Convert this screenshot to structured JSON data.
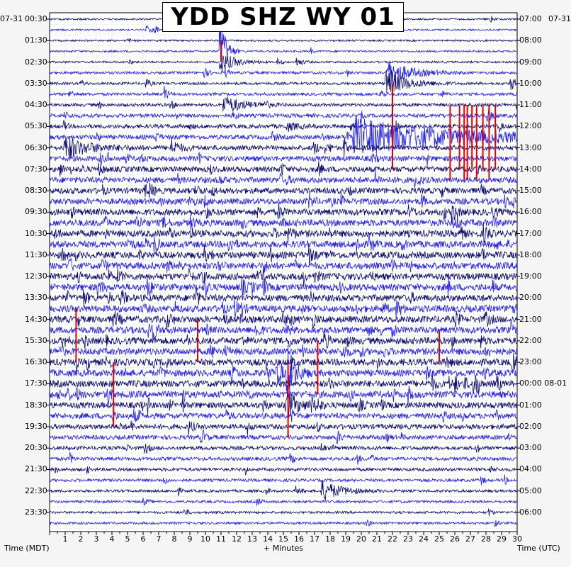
{
  "chart_data": {
    "type": "helicorder",
    "title": "YDD SHZ WY 01",
    "left_date": "07-31",
    "right_date": "07-31",
    "left_times": [
      "00:30",
      "01:30",
      "02:30",
      "03:30",
      "04:30",
      "05:30",
      "06:30",
      "07:30",
      "08:30",
      "09:30",
      "10:30",
      "11:30",
      "12:30",
      "13:30",
      "14:30",
      "15:30",
      "16:30",
      "17:30",
      "18:30",
      "19:30",
      "20:30",
      "21:30",
      "22:30",
      "23:30"
    ],
    "right_times": [
      "07:00",
      "08:00",
      "09:00",
      "10:00",
      "11:00",
      "12:00",
      "13:00",
      "14:00",
      "15:00",
      "16:00",
      "17:00",
      "18:00",
      "19:00",
      "20:00",
      "21:00",
      "22:00",
      "23:00",
      "00:00 08-01",
      "01:00",
      "02:00",
      "03:00",
      "04:00",
      "05:00",
      "06:00"
    ],
    "x_ticks": [
      "1",
      "2",
      "3",
      "4",
      "5",
      "6",
      "7",
      "8",
      "9",
      "10",
      "11",
      "12",
      "13",
      "14",
      "15",
      "16",
      "17",
      "18",
      "19",
      "20",
      "21",
      "22",
      "23",
      "24",
      "25",
      "26",
      "27",
      "28",
      "29",
      "30"
    ],
    "xlim": [
      0,
      30
    ],
    "xlabel": "+ Minutes",
    "left_axis_label": "Time (MDT)",
    "right_axis_label": "Time (UTC)",
    "trace_count": 48,
    "minutes_per_trace": 30,
    "colors": [
      "#0a0a6e",
      "#2020ee"
    ],
    "highlight_color": "#e00000",
    "activity_profile": [
      0.15,
      0.15,
      0.15,
      0.18,
      0.2,
      0.3,
      0.3,
      0.35,
      0.4,
      0.5,
      0.55,
      0.6,
      0.65,
      0.75,
      0.8,
      0.85,
      0.85,
      0.9,
      0.95,
      1.0,
      1.0,
      1.0,
      1.0,
      1.0,
      1.0,
      1.0,
      1.0,
      1.0,
      1.0,
      1.0,
      1.0,
      1.0,
      1.0,
      1.0,
      1.0,
      1.0,
      0.9,
      0.8,
      0.7,
      0.6,
      0.5,
      0.45,
      0.4,
      0.35,
      0.3,
      0.28,
      0.25,
      0.25
    ],
    "events": [
      {
        "trace": 0,
        "minute": 10.3,
        "amp": 6,
        "dur": 1.2
      },
      {
        "trace": 1,
        "minute": 6.2,
        "amp": 5,
        "dur": 0.8
      },
      {
        "trace": 3,
        "minute": 11.0,
        "amp": 45,
        "dur": 0.6,
        "clip": true
      },
      {
        "trace": 4,
        "minute": 11.0,
        "amp": 14,
        "dur": 1.5
      },
      {
        "trace": 4,
        "minute": 15.9,
        "amp": 6,
        "dur": 0.5
      },
      {
        "trace": 5,
        "minute": 21.7,
        "amp": 16,
        "dur": 2.5
      },
      {
        "trace": 6,
        "minute": 21.6,
        "amp": 18,
        "dur": 2.2
      },
      {
        "trace": 6,
        "minute": 29.6,
        "amp": 10,
        "dur": 0.5
      },
      {
        "trace": 7,
        "minute": 7.4,
        "amp": 11,
        "dur": 0.3
      },
      {
        "trace": 8,
        "minute": 11.2,
        "amp": 12,
        "dur": 2.0
      },
      {
        "trace": 10,
        "minute": 15.3,
        "amp": 5,
        "dur": 1.0
      },
      {
        "trace": 11,
        "minute": 19.5,
        "amp": 26,
        "dur": 10.5
      },
      {
        "trace": 12,
        "minute": 1.0,
        "amp": 14,
        "dur": 2.5
      },
      {
        "trace": 12,
        "minute": 7.8,
        "amp": 12,
        "dur": 0.8
      },
      {
        "trace": 33,
        "minute": 15.3,
        "amp": 35,
        "dur": 0.8
      },
      {
        "trace": 36,
        "minute": 15.2,
        "amp": 22,
        "dur": 1.0
      },
      {
        "trace": 44,
        "minute": 17.5,
        "amp": 14,
        "dur": 2.0
      }
    ],
    "red_marks": [
      {
        "minute": 11.0,
        "from_trace": 2,
        "to_trace": 4
      },
      {
        "minute": 22.0,
        "from_trace": 6,
        "to_trace": 14
      },
      {
        "minute": 25.7,
        "from_trace": 8,
        "to_trace": 15
      },
      {
        "minute": 26.3,
        "from_trace": 8,
        "to_trace": 14
      },
      {
        "minute": 26.6,
        "from_trace": 8,
        "to_trace": 15
      },
      {
        "minute": 26.8,
        "from_trace": 8,
        "to_trace": 15
      },
      {
        "minute": 27.1,
        "from_trace": 8,
        "to_trace": 14
      },
      {
        "minute": 27.4,
        "from_trace": 8,
        "to_trace": 15
      },
      {
        "minute": 27.8,
        "from_trace": 8,
        "to_trace": 14
      },
      {
        "minute": 28.2,
        "from_trace": 8,
        "to_trace": 15
      },
      {
        "minute": 28.6,
        "from_trace": 8,
        "to_trace": 14
      },
      {
        "minute": 1.7,
        "from_trace": 27,
        "to_trace": 32
      },
      {
        "minute": 9.5,
        "from_trace": 28,
        "to_trace": 32
      },
      {
        "minute": 4.1,
        "from_trace": 32,
        "to_trace": 38
      },
      {
        "minute": 15.3,
        "from_trace": 32,
        "to_trace": 39
      },
      {
        "minute": 17.2,
        "from_trace": 30,
        "to_trace": 35
      },
      {
        "minute": 25.0,
        "from_trace": 29,
        "to_trace": 32
      }
    ]
  }
}
